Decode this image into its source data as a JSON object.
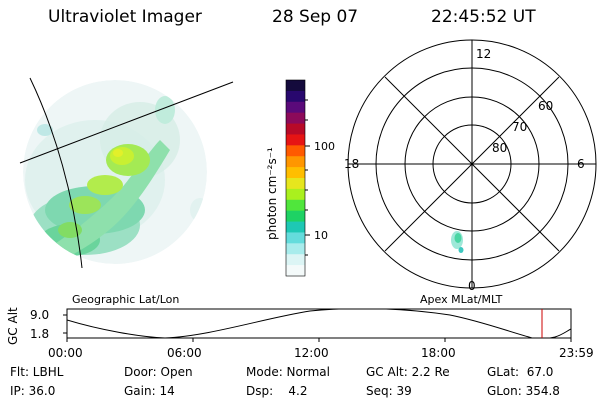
{
  "header": {
    "title": "Ultraviolet Imager",
    "date": "28 Sep 07",
    "time": "22:45:52 UT"
  },
  "colorbar": {
    "label": "photon cm⁻²s⁻¹",
    "ticks": [
      "100",
      "10"
    ],
    "colors": [
      "#140a3c",
      "#28086e",
      "#5a0a7a",
      "#8c0a5a",
      "#b80a28",
      "#e61414",
      "#ff5a00",
      "#ff9600",
      "#ffbe00",
      "#e6e61e",
      "#aaf01e",
      "#50e63c",
      "#1ed264",
      "#1ec8b4",
      "#64dcdc",
      "#a8ecec",
      "#dcf5f5",
      "#f4fafa"
    ]
  },
  "left_panel": {
    "label": "Geographic Lat/Lon"
  },
  "right_panel": {
    "label": "Apex MLat/MLT",
    "mlt_labels": {
      "top": "12",
      "bottom": "0",
      "left": "18",
      "right": "6"
    },
    "lat_labels": [
      "60",
      "70",
      "80"
    ]
  },
  "timeline": {
    "ylabel": "GC Alt",
    "ytick_top": "9.0",
    "ytick_bottom": "1.8",
    "xticks": [
      "00:00",
      "06:00",
      "12:00",
      "18:00",
      "23:59"
    ],
    "marker_color": "#cc0000"
  },
  "info": {
    "row1": {
      "flt": "Flt: LBHL",
      "door": "Door: Open",
      "mode": "Mode: Normal",
      "gcalt": "GC Alt: 2.2 Re",
      "glat": "GLat:  67.0"
    },
    "row2": {
      "ip": "IP: 36.0",
      "gain": "Gain: 14",
      "dsp": "Dsp:    4.2",
      "seq": "Seq: 39",
      "glon": "GLon: 354.8"
    }
  }
}
